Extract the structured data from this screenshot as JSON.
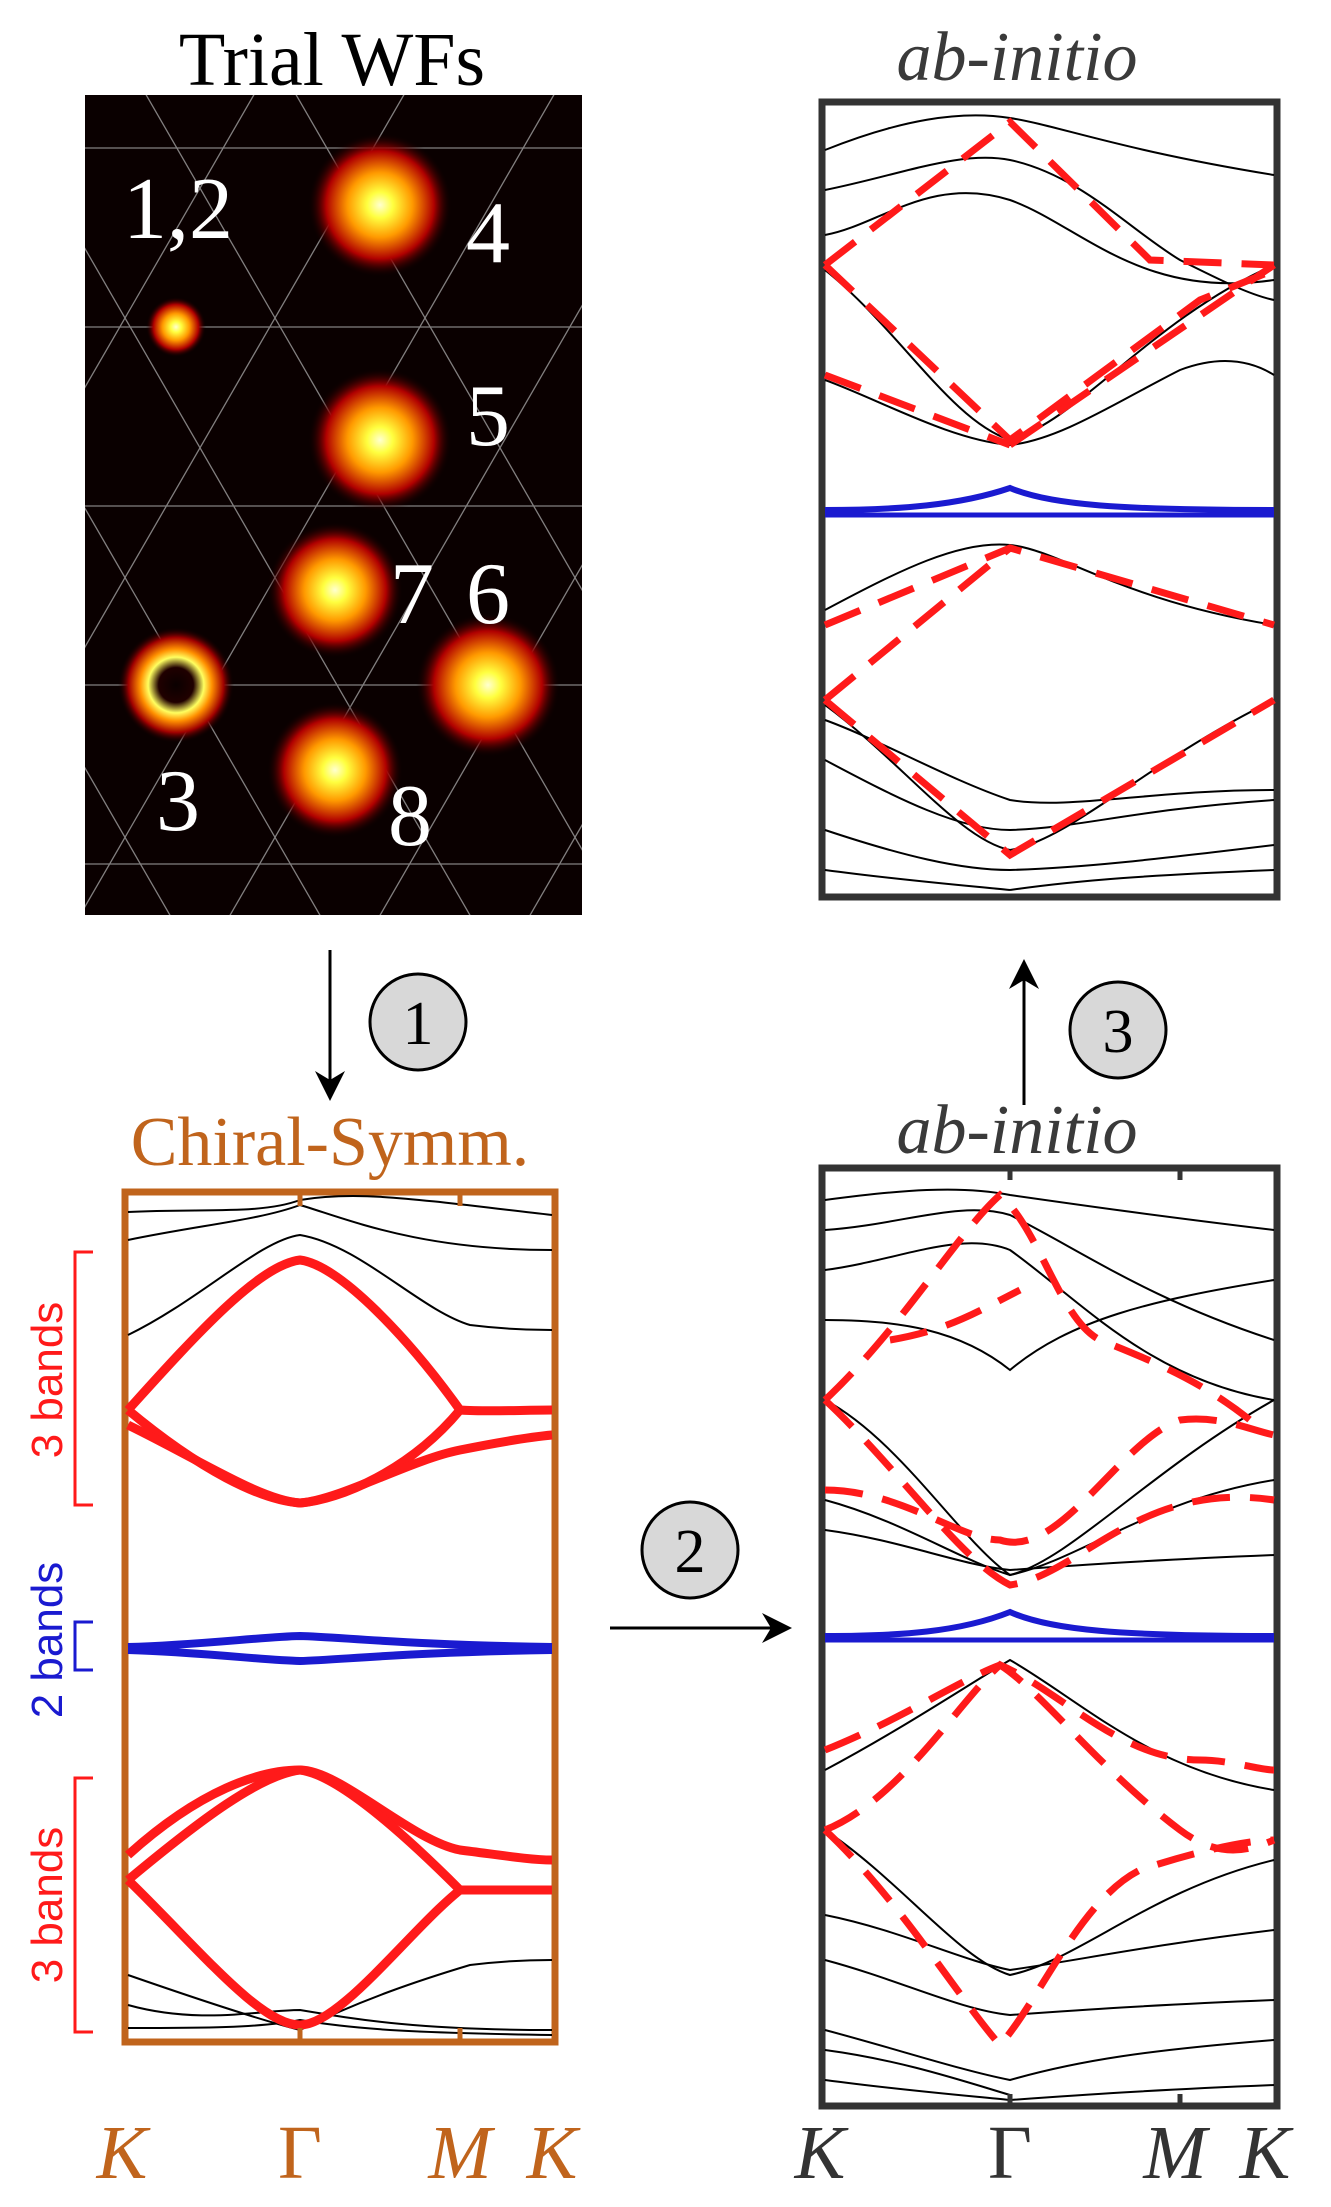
{
  "trial_wfs": {
    "title": "Trial WFs",
    "labels": [
      "1,2",
      "4",
      "5",
      "7",
      "6",
      "3",
      "8"
    ]
  },
  "steps": [
    "1",
    "2",
    "3"
  ],
  "chiral_panel": {
    "title": "Chiral-Symm.",
    "band_groups": [
      "3 bands",
      "2 bands",
      "3 bands"
    ],
    "kpath": [
      "K",
      "Γ",
      "M",
      "K"
    ]
  },
  "abinitio_top": {
    "title": "ab-initio"
  },
  "abinitio_bottom": {
    "title": "ab-initio",
    "kpath": [
      "K",
      "Γ",
      "M",
      "K"
    ]
  },
  "colors": {
    "chiral": "#c0641c",
    "red_bands": "#ff1a1a",
    "blue_bands": "#1a1ad0",
    "frame": "#333333",
    "wf_background": "#0a0000"
  }
}
